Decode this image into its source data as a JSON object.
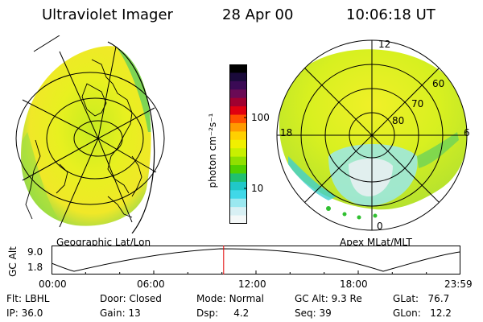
{
  "header": {
    "instrument": "Ultraviolet Imager",
    "date": "28 Apr 00",
    "time": "10:06:18 UT"
  },
  "colorbar": {
    "label": "photon cm⁻²s⁻¹",
    "ticks": [
      "100",
      "10"
    ],
    "colors": [
      "#000000",
      "#1a0a3a",
      "#3a0a55",
      "#6a0a55",
      "#a00030",
      "#e00010",
      "#ff5000",
      "#ff9a00",
      "#ffd000",
      "#f0f000",
      "#c8f000",
      "#90e000",
      "#50d000",
      "#20c070",
      "#20c8c8",
      "#40d8e8",
      "#9ae8f0",
      "#d8f0f4",
      "#f4f8f8"
    ]
  },
  "geo_map": {
    "label": "Geographic Lat/Lon"
  },
  "polar_map": {
    "label": "Apex MLat/MLT",
    "hour_labels": {
      "top": "12",
      "left": "18",
      "right": "6",
      "bottom": "0"
    },
    "lat_labels": [
      "60",
      "70",
      "80"
    ]
  },
  "altitude_plot": {
    "ylabel": "GC Alt",
    "y_ticks": [
      "9.0",
      "1.8"
    ],
    "x_ticks": [
      "00:00",
      "06:00",
      "12:00",
      "18:00",
      "23:59"
    ],
    "marker_time_hours": 10.1
  },
  "info": {
    "row1": [
      {
        "label": "Flt:",
        "value": "LBHL"
      },
      {
        "label": "Door:",
        "value": "Closed"
      },
      {
        "label": "Mode:",
        "value": "Normal"
      },
      {
        "label": "GC Alt:",
        "value": "9.3 Re"
      },
      {
        "label": "GLat:",
        "value": "76.7"
      }
    ],
    "row2": [
      {
        "label": "IP:",
        "value": "36.0"
      },
      {
        "label": "Gain:",
        "value": "13"
      },
      {
        "label": "Dsp:",
        "value": "4.2"
      },
      {
        "label": "Seq:",
        "value": "39"
      },
      {
        "label": "GLon:",
        "value": "12.2"
      }
    ]
  }
}
